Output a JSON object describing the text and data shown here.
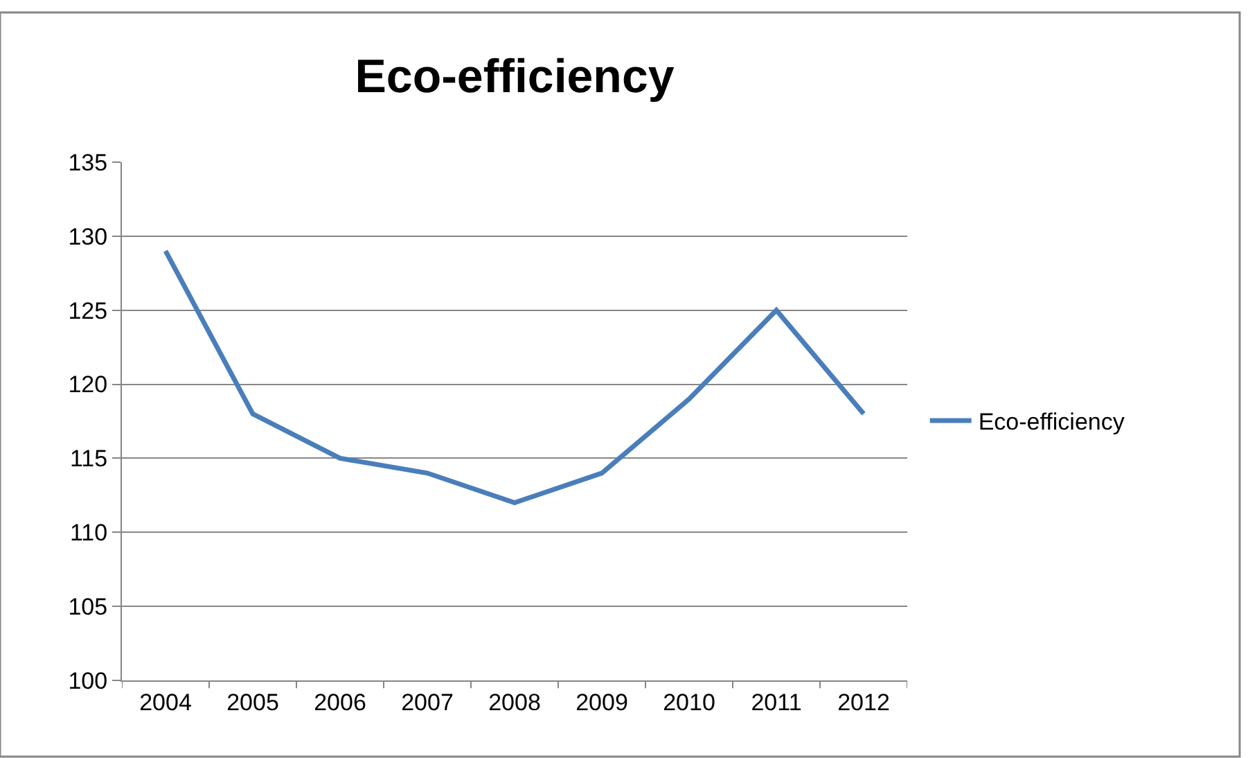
{
  "chart_data": {
    "type": "line",
    "title": "Eco-efficiency",
    "categories": [
      "2004",
      "2005",
      "2006",
      "2007",
      "2008",
      "2009",
      "2010",
      "2011",
      "2012"
    ],
    "series": [
      {
        "name": "Eco-efficiency",
        "color": "#4a7ebb",
        "values": [
          129,
          118,
          115,
          114,
          112,
          114,
          119,
          125,
          118
        ]
      }
    ],
    "ylim": [
      100,
      135
    ],
    "yticks": [
      100,
      105,
      110,
      115,
      120,
      125,
      130,
      135
    ],
    "grid": "y",
    "legend": "right",
    "marker": "none",
    "line_style": "solid"
  }
}
